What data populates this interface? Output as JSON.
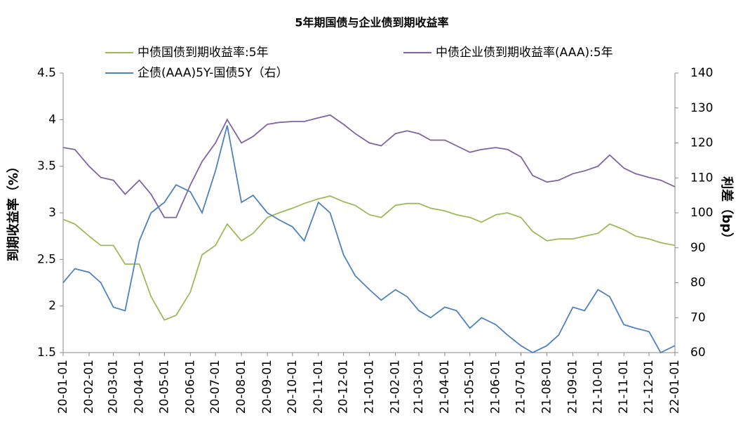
{
  "chart_data": {
    "type": "line",
    "title": "5年期国债与企业债到期收益率",
    "y_label": "到期收益率（%）",
    "y2_label": "利差（bp）",
    "x": [
      "20-01-01",
      "20-01-15",
      "20-02-01",
      "20-02-15",
      "20-03-01",
      "20-03-15",
      "20-04-01",
      "20-04-15",
      "20-05-01",
      "20-05-15",
      "20-06-01",
      "20-06-15",
      "20-07-01",
      "20-07-15",
      "20-08-01",
      "20-08-15",
      "20-09-01",
      "20-09-15",
      "20-10-01",
      "20-10-15",
      "20-11-01",
      "20-11-15",
      "20-12-01",
      "20-12-15",
      "21-01-01",
      "21-01-15",
      "21-02-01",
      "21-02-15",
      "21-03-01",
      "21-03-15",
      "21-04-01",
      "21-04-15",
      "21-05-01",
      "21-05-15",
      "21-06-01",
      "21-06-15",
      "21-07-01",
      "21-07-15",
      "21-08-01",
      "21-08-15",
      "21-09-01",
      "21-09-15",
      "21-10-01",
      "21-10-15",
      "21-11-01",
      "21-11-15",
      "21-12-01",
      "21-12-15",
      "22-01-01"
    ],
    "series": [
      {
        "name": "中债国债到期收益率:5年",
        "color": "#9bbb59",
        "axis": "y",
        "values": [
          2.93,
          2.88,
          2.75,
          2.65,
          2.65,
          2.45,
          2.45,
          2.1,
          1.85,
          1.9,
          2.15,
          2.55,
          2.65,
          2.88,
          2.7,
          2.78,
          2.95,
          3.0,
          3.05,
          3.1,
          3.15,
          3.18,
          3.12,
          3.08,
          2.98,
          2.95,
          3.08,
          3.1,
          3.1,
          3.05,
          3.02,
          2.98,
          2.95,
          2.9,
          2.98,
          3.0,
          2.95,
          2.8,
          2.7,
          2.72,
          2.72,
          2.75,
          2.78,
          2.88,
          2.82,
          2.75,
          2.72,
          2.68,
          2.65
        ]
      },
      {
        "name": "中债企业债到期收益率(AAA):5年",
        "color": "#8064a2",
        "axis": "y",
        "values": [
          3.7,
          3.68,
          3.5,
          3.38,
          3.35,
          3.2,
          3.35,
          3.2,
          2.95,
          2.95,
          3.3,
          3.55,
          3.75,
          4.0,
          3.75,
          3.82,
          3.95,
          3.97,
          3.98,
          3.98,
          4.02,
          4.05,
          3.95,
          3.85,
          3.75,
          3.72,
          3.85,
          3.88,
          3.85,
          3.78,
          3.78,
          3.72,
          3.65,
          3.68,
          3.7,
          3.68,
          3.6,
          3.4,
          3.33,
          3.35,
          3.42,
          3.45,
          3.5,
          3.62,
          3.48,
          3.42,
          3.38,
          3.35,
          3.28
        ]
      },
      {
        "name": "企债(AAA)5Y-国债5Y（右）",
        "color": "#4f81bd",
        "axis": "y2",
        "values": [
          80,
          84,
          83,
          80,
          73,
          72,
          92,
          100,
          103,
          108,
          106,
          100,
          112,
          125,
          103,
          105,
          100,
          98,
          96,
          92,
          103,
          100,
          88,
          82,
          78,
          75,
          78,
          76,
          72,
          70,
          73,
          72,
          67,
          70,
          68,
          65,
          62,
          60,
          62,
          65,
          73,
          72,
          78,
          76,
          68,
          67,
          66,
          60,
          62
        ]
      }
    ],
    "xlim": [
      "20-01-01",
      "22-01-01"
    ],
    "xticks": [
      "20-01-01",
      "20-02-01",
      "20-03-01",
      "20-04-01",
      "20-05-01",
      "20-06-01",
      "20-07-01",
      "20-08-01",
      "20-09-01",
      "20-10-01",
      "20-11-01",
      "20-12-01",
      "21-01-01",
      "21-02-01",
      "21-03-01",
      "21-04-01",
      "21-05-01",
      "21-06-01",
      "21-07-01",
      "21-08-01",
      "21-09-01",
      "21-10-01",
      "21-11-01",
      "21-12-01",
      "22-01-01"
    ],
    "ylim": [
      1.5,
      4.5
    ],
    "yticks": [
      1.5,
      2,
      2.5,
      3,
      3.5,
      4,
      4.5
    ],
    "y2lim": [
      60,
      140
    ],
    "y2ticks": [
      60,
      70,
      80,
      90,
      100,
      110,
      120,
      130,
      140
    ],
    "grid": false
  }
}
